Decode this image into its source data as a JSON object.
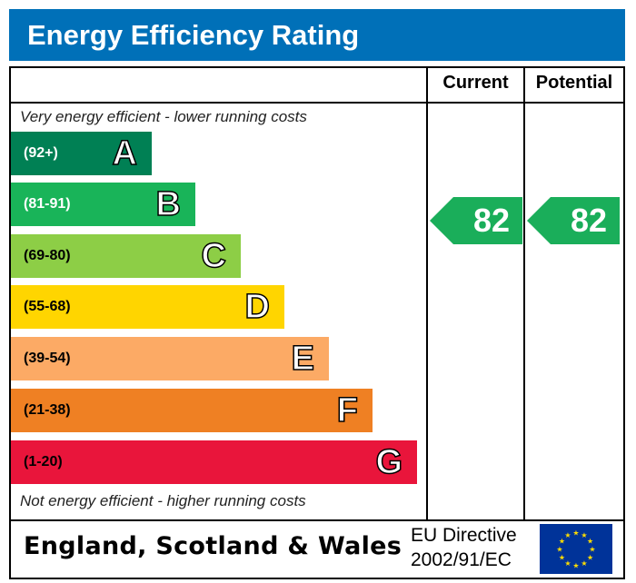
{
  "title": "Energy Efficiency Rating",
  "columns": {
    "current": "Current",
    "potential": "Potential"
  },
  "top_note": "Very energy efficient - lower running costs",
  "bottom_note": "Not energy efficient - higher running costs",
  "footer": {
    "region": "England, Scotland & Wales",
    "directive_line1": "EU Directive",
    "directive_line2": "2002/91/EC",
    "flag_icon": "eu-flag-icon"
  },
  "chart_data": {
    "type": "bar",
    "bands": [
      {
        "letter": "A",
        "range": "(92+)",
        "color": "#008054",
        "text": "#fff"
      },
      {
        "letter": "B",
        "range": "(81-91)",
        "color": "#19b459",
        "text": "#fff"
      },
      {
        "letter": "C",
        "range": "(69-80)",
        "color": "#8dce46",
        "text": "#000"
      },
      {
        "letter": "D",
        "range": "(55-68)",
        "color": "#ffd500",
        "text": "#000"
      },
      {
        "letter": "E",
        "range": "(39-54)",
        "color": "#fcaa65",
        "text": "#000"
      },
      {
        "letter": "F",
        "range": "(21-38)",
        "color": "#ef8023",
        "text": "#000"
      },
      {
        "letter": "G",
        "range": "(1-20)",
        "color": "#e9153b",
        "text": "#000"
      }
    ],
    "current": {
      "value": "82",
      "band": "B",
      "color": "#1aae5a"
    },
    "potential": {
      "value": "82",
      "band": "B",
      "color": "#1aae5a"
    }
  }
}
